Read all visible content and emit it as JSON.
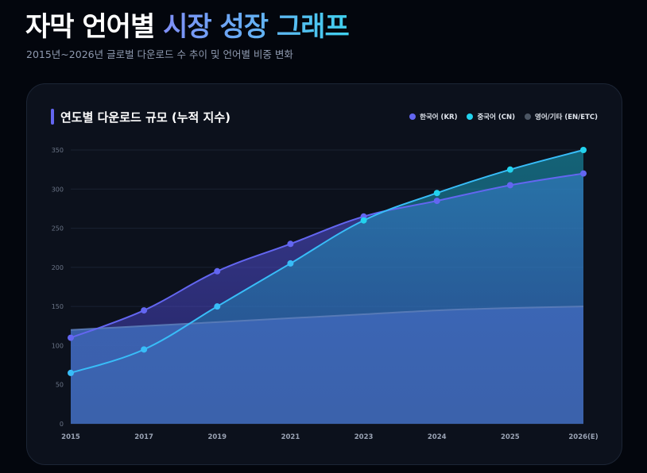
{
  "header": {
    "title_part1": "자막 언어별",
    "title_part2": "시장 성장 그래프",
    "subtitle": "2015년~2026년 글로벌 다운로드 수 추이 및 언어별 비중 변화"
  },
  "card": {
    "title": "연도별 다운로드 규모 (누적 지수)"
  },
  "colors": {
    "kr": "#6366f1",
    "cn": "#22d3ee",
    "cn_line": "#38bdf8",
    "en": "#4b5563",
    "en_line": "#5b7cb8"
  },
  "chart_data": {
    "type": "area",
    "title": "연도별 다운로드 규모 (누적 지수)",
    "categories": [
      "2015",
      "2017",
      "2019",
      "2021",
      "2023",
      "2024",
      "2025",
      "2026(E)"
    ],
    "ylim": [
      0,
      350
    ],
    "yticks": [
      "0",
      "50",
      "100",
      "150",
      "200",
      "250",
      "300",
      "350"
    ],
    "grid": true,
    "legend_position": "top-right",
    "series": [
      {
        "name": "한국어 (KR)",
        "key": "kr",
        "values": [
          110,
          145,
          195,
          230,
          265,
          285,
          305,
          320
        ]
      },
      {
        "name": "중국어 (CN)",
        "key": "cn",
        "values": [
          65,
          95,
          150,
          205,
          260,
          295,
          325,
          350
        ]
      },
      {
        "name": "영어/기타 (EN/ETC)",
        "key": "en",
        "values": [
          120,
          125,
          130,
          135,
          140,
          145,
          148,
          150
        ]
      }
    ]
  }
}
